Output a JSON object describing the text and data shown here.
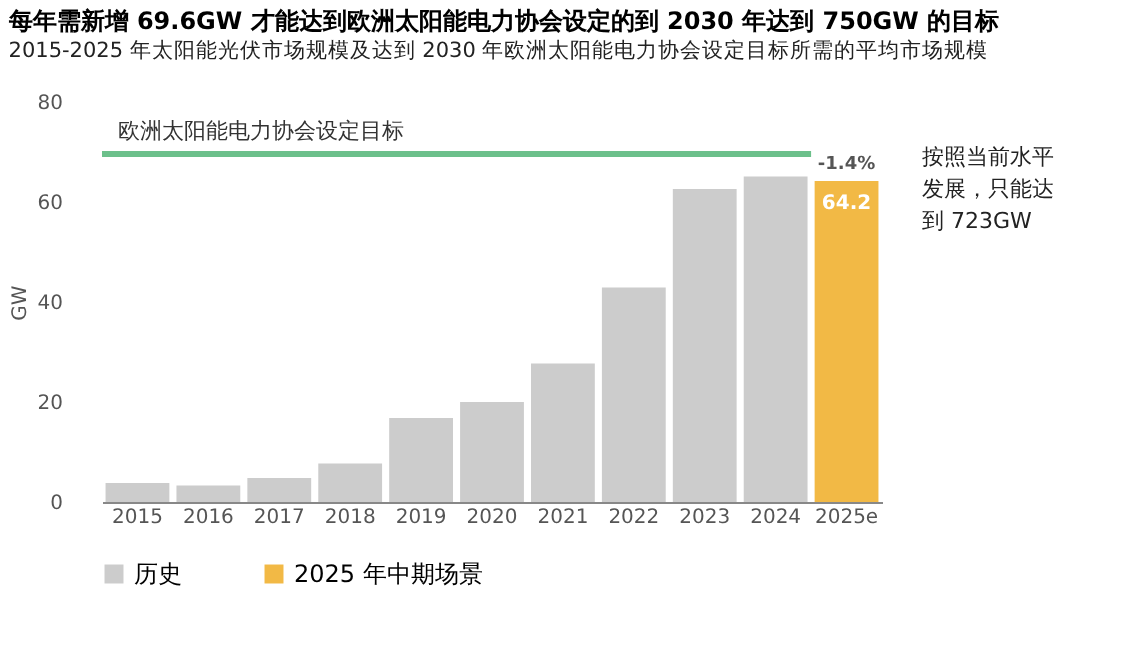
{
  "chart_data": {
    "type": "bar",
    "title": "每年需新增 69.6GW 才能达到欧洲太阳能电力协会设定的到 2030 年达到 750GW 的目标",
    "subtitle": "2015-2025 年太阳能光伏市场规模及达到 2030 年欧洲太阳能电力协会设定目标所需的平均市场规模",
    "ylabel": "GW",
    "categories": [
      "2015",
      "2016",
      "2017",
      "2018",
      "2019",
      "2020",
      "2021",
      "2022",
      "2023",
      "2024",
      "2025e"
    ],
    "series": [
      {
        "name": "历史",
        "color": "#cccccc",
        "values": [
          3.8,
          3.3,
          4.8,
          7.7,
          16.8,
          20.0,
          27.7,
          42.9,
          62.6,
          65.1,
          null
        ]
      },
      {
        "name": "2025 年中期场景",
        "color": "#f2b945",
        "values": [
          null,
          null,
          null,
          null,
          null,
          null,
          null,
          null,
          null,
          null,
          64.2
        ],
        "value_labels": [
          null,
          null,
          null,
          null,
          null,
          null,
          null,
          null,
          null,
          null,
          "64.2"
        ]
      }
    ],
    "ylim": [
      0,
      80
    ],
    "yticks": [
      0,
      20,
      40,
      60,
      80
    ],
    "grid": false,
    "legend": "bottom",
    "ref_lines": [
      {
        "axis": "y",
        "value": 69.6,
        "label": "欧洲太阳能电力协会设定目标",
        "color": "#6cc08b"
      }
    ],
    "annotations": [
      {
        "text": "-1.4%",
        "x": "2025e",
        "y": 65.1
      },
      "按照当前水平发展，只能达到 723GW"
    ]
  }
}
